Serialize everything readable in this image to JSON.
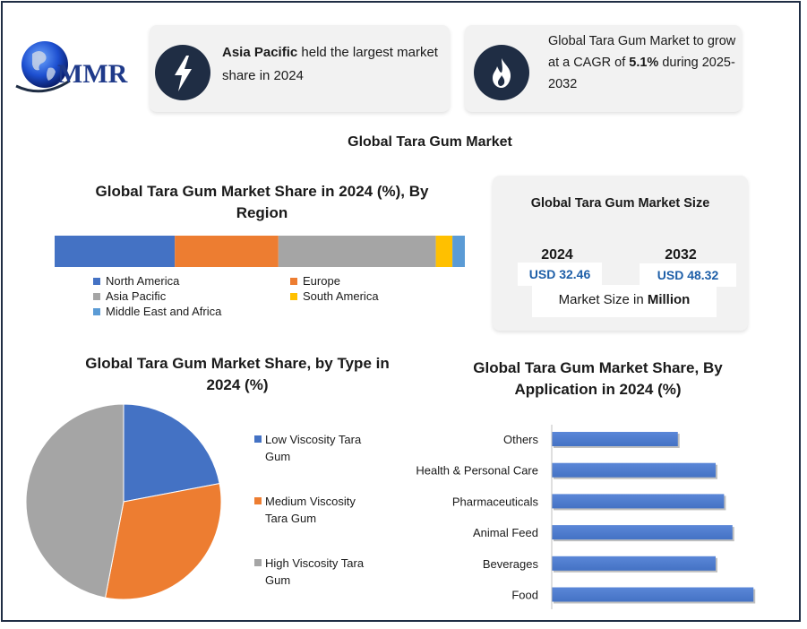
{
  "logo": {
    "text": "MMR"
  },
  "info_cards": [
    {
      "bold": "Asia Pacific",
      "text": " held the largest market share in 2024",
      "icon": "lightning-icon"
    },
    {
      "pre": "Global Tara Gum Market to grow at a CAGR of ",
      "bold": "5.1%",
      "post": " during 2025-2032",
      "icon": "flame-icon"
    }
  ],
  "main_title": "Global Tara Gum Market",
  "market_size": {
    "title": "Global Tara Gum Market Size",
    "years": [
      "2024",
      "2032"
    ],
    "values": [
      "USD 32.46",
      "USD 48.32"
    ],
    "caption_pre": "Market Size in ",
    "caption_bold": "Million"
  },
  "colors": {
    "navy": "#1f2d44",
    "blue": "#4472c4",
    "orange": "#ed7d31",
    "gray": "#a5a5a5",
    "yellow": "#ffc000",
    "lightblue": "#5b9bd5"
  },
  "chart_data": [
    {
      "type": "bar",
      "orientation": "horizontal-stacked",
      "title": "Global Tara Gum Market Share in 2024 (%), By Region",
      "series": [
        {
          "name": "North America",
          "value": 29,
          "color": "#4472c4"
        },
        {
          "name": "Europe",
          "value": 25,
          "color": "#ed7d31"
        },
        {
          "name": "Asia Pacific",
          "value": 38,
          "color": "#a5a5a5"
        },
        {
          "name": "South America",
          "value": 4,
          "color": "#ffc000"
        },
        {
          "name": "Middle East and Africa",
          "value": 3,
          "color": "#5b9bd5"
        }
      ],
      "legend": "bottom"
    },
    {
      "type": "pie",
      "title": "Global Tara Gum Market Share, by Type in 2024 (%)",
      "slices": [
        {
          "name": "Low Viscosity Tara Gum",
          "value": 22,
          "color": "#4472c4"
        },
        {
          "name": "Medium Viscosity Tara Gum",
          "value": 31,
          "color": "#ed7d31"
        },
        {
          "name": "High Viscosity Tara Gum",
          "value": 47,
          "color": "#a5a5a5"
        }
      ],
      "legend": "right"
    },
    {
      "type": "bar",
      "orientation": "horizontal",
      "title": "Global Tara Gum Market Share, By Application in 2024 (%)",
      "categories": [
        "Others",
        "Health & Personal Care",
        "Pharmaceuticals",
        "Animal Feed",
        "Beverages",
        "Food"
      ],
      "values": [
        15,
        19.5,
        20.5,
        21.5,
        19.5,
        24
      ],
      "xlim": [
        0,
        26
      ],
      "color": "#4472c4"
    }
  ]
}
